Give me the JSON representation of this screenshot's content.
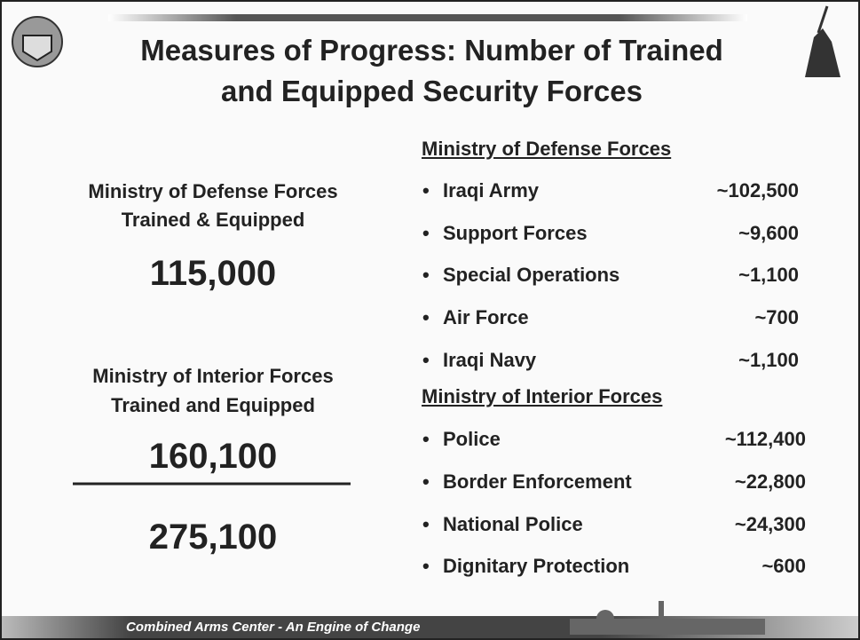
{
  "header": {
    "title_lines": [
      "Measures of Progress:   Number of Trained",
      "and Equipped Security Forces"
    ]
  },
  "summary": {
    "defense_label": [
      "Ministry of Defense Forces",
      "Trained & Equipped"
    ],
    "defense_total": "115,000",
    "interior_label": [
      "Ministry of Interior Forces",
      "Trained and Equipped"
    ],
    "interior_total": "160,100",
    "grand_total": "275,100"
  },
  "sections": [
    {
      "heading": "Ministry of Defense Forces",
      "items": [
        {
          "label": "Iraqi Army",
          "value": "~102,500"
        },
        {
          "label": "Support Forces",
          "value": "~9,600"
        },
        {
          "label": "Special Operations",
          "value": "~1,100"
        },
        {
          "label": "Air Force",
          "value": "~700"
        },
        {
          "label": "Iraqi Navy",
          "value": "~1,100"
        }
      ]
    },
    {
      "heading": "Ministry of Interior Forces",
      "items": [
        {
          "label": "Police",
          "value": "~112,400"
        },
        {
          "label": "Border Enforcement",
          "value": "~22,800"
        },
        {
          "label": "National Police",
          "value": "~24,300"
        },
        {
          "label": "Dignitary Protection",
          "value": "~600"
        }
      ]
    }
  ],
  "footer": {
    "text": "Combined Arms Center - An Engine of Change"
  }
}
